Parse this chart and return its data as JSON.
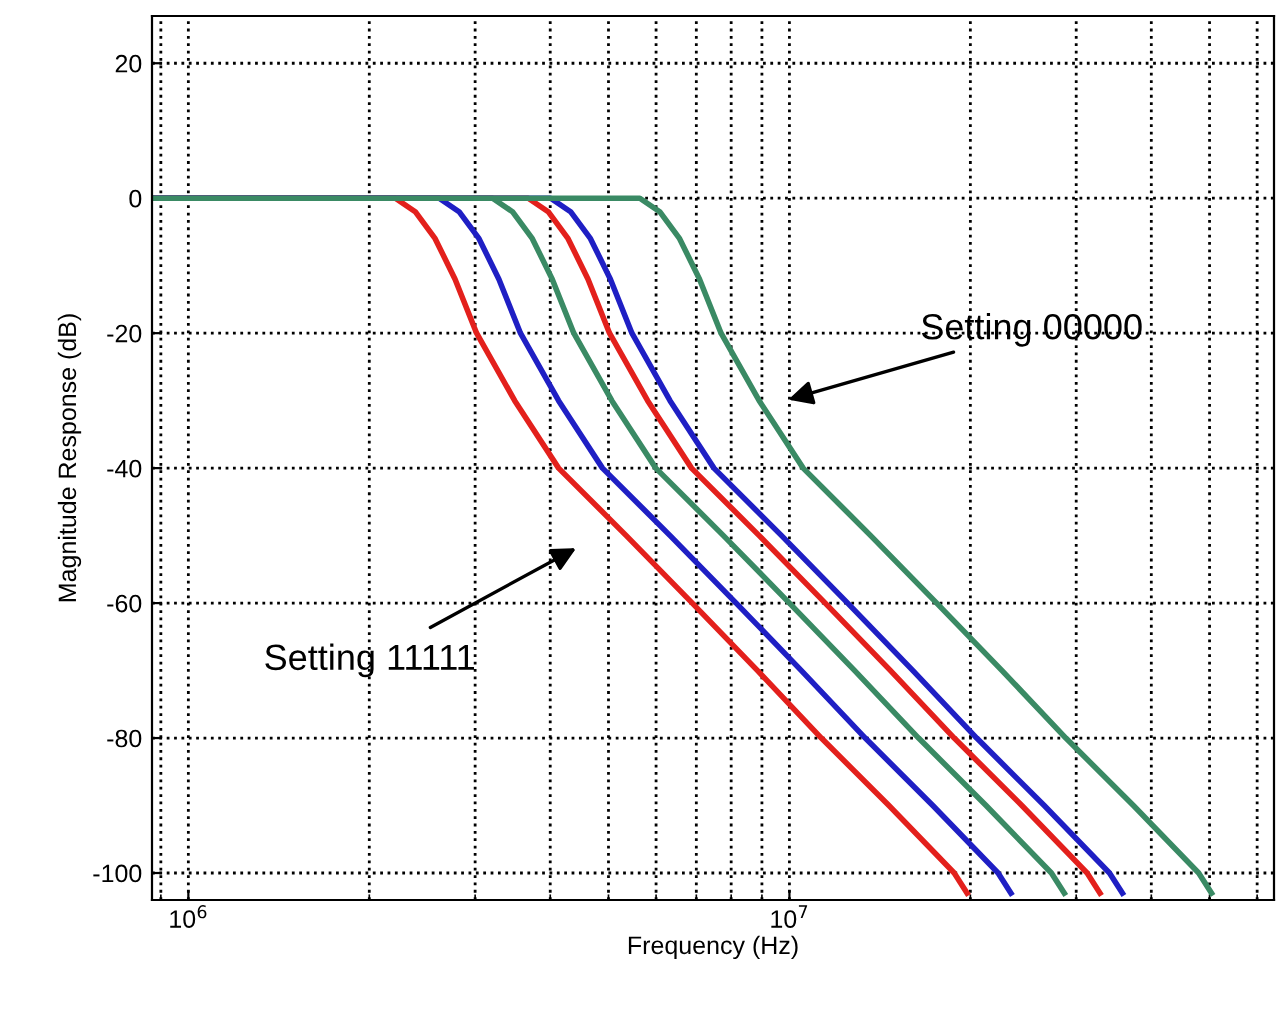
{
  "chart_data": {
    "type": "line",
    "xlabel": "Frequency (Hz)",
    "ylabel": "Magnitude Response (dB)",
    "log": "x",
    "grid": true,
    "legend": false,
    "marker": "none",
    "line_style": "solid",
    "xlim": [
      870000,
      64000000
    ],
    "ylim": [
      -104,
      27
    ],
    "xticks": [
      {
        "value": 1000000,
        "label": "10$^{6}$"
      },
      {
        "value": 10000000,
        "label": "10$^{7}$"
      }
    ],
    "yticks": [
      20,
      0,
      -20,
      -40,
      -60,
      -80,
      -100
    ],
    "series": [
      {
        "color": "#e3201c",
        "x": [
          872000,
          2210000,
          2385000,
          2574000,
          2778000,
          3017000,
          3491000,
          4130000,
          5352000,
          6893000,
          8851000,
          11300000,
          14640000,
          18800000,
          19750000
        ],
        "values": [
          0,
          0,
          -2,
          -6,
          -12,
          -20,
          -30,
          -40,
          -50,
          -60,
          -70,
          -80,
          -90,
          -100,
          -103
        ]
      },
      {
        "color": "#1f1fc4",
        "x": [
          872000,
          2614000,
          2821000,
          3045000,
          3286000,
          3569000,
          4130000,
          4886000,
          6331000,
          8154000,
          10470000,
          13370000,
          17320000,
          22240000,
          23360000
        ],
        "values": [
          0,
          0,
          -2,
          -6,
          -12,
          -20,
          -30,
          -40,
          -50,
          -60,
          -70,
          -80,
          -90,
          -100,
          -103
        ]
      },
      {
        "color": "#3a8a64",
        "x": [
          872000,
          3207000,
          3461000,
          3735000,
          4031000,
          4378000,
          5065000,
          5993000,
          7766000,
          10000000,
          12840000,
          16400000,
          21240000,
          27280000,
          28660000
        ],
        "values": [
          0,
          0,
          -2,
          -6,
          -12,
          -20,
          -30,
          -40,
          -50,
          -60,
          -70,
          -80,
          -90,
          -100,
          -103
        ]
      },
      {
        "color": "#e3201c",
        "x": [
          872000,
          3677000,
          3969000,
          4283000,
          4623000,
          5020000,
          5809000,
          6872000,
          8906000,
          11470000,
          14730000,
          18800000,
          24360000,
          31280000,
          32860000
        ],
        "values": [
          0,
          0,
          -2,
          -6,
          -12,
          -20,
          -30,
          -40,
          -50,
          -60,
          -70,
          -80,
          -90,
          -100,
          -103
        ]
      },
      {
        "color": "#1f1fc4",
        "x": [
          872000,
          4007000,
          4324000,
          4667000,
          5037000,
          5470000,
          6329000,
          7488000,
          9703000,
          12500000,
          16050000,
          20490000,
          26540000,
          34080000,
          35810000
        ],
        "values": [
          0,
          0,
          -2,
          -6,
          -12,
          -20,
          -30,
          -40,
          -50,
          -60,
          -70,
          -80,
          -90,
          -100,
          -103
        ]
      },
      {
        "color": "#3a8a64",
        "x": [
          872000,
          5638000,
          6084000,
          6566000,
          7087000,
          7696000,
          8906000,
          10540000,
          13650000,
          17580000,
          22580000,
          28830000,
          37350000,
          47960000,
          50380000
        ],
        "values": [
          0,
          0,
          -2,
          -6,
          -12,
          -20,
          -30,
          -40,
          -50,
          -60,
          -70,
          -80,
          -90,
          -100,
          -103
        ]
      }
    ],
    "annotations": [
      "Setting 00000",
      "Setting 11111"
    ]
  }
}
